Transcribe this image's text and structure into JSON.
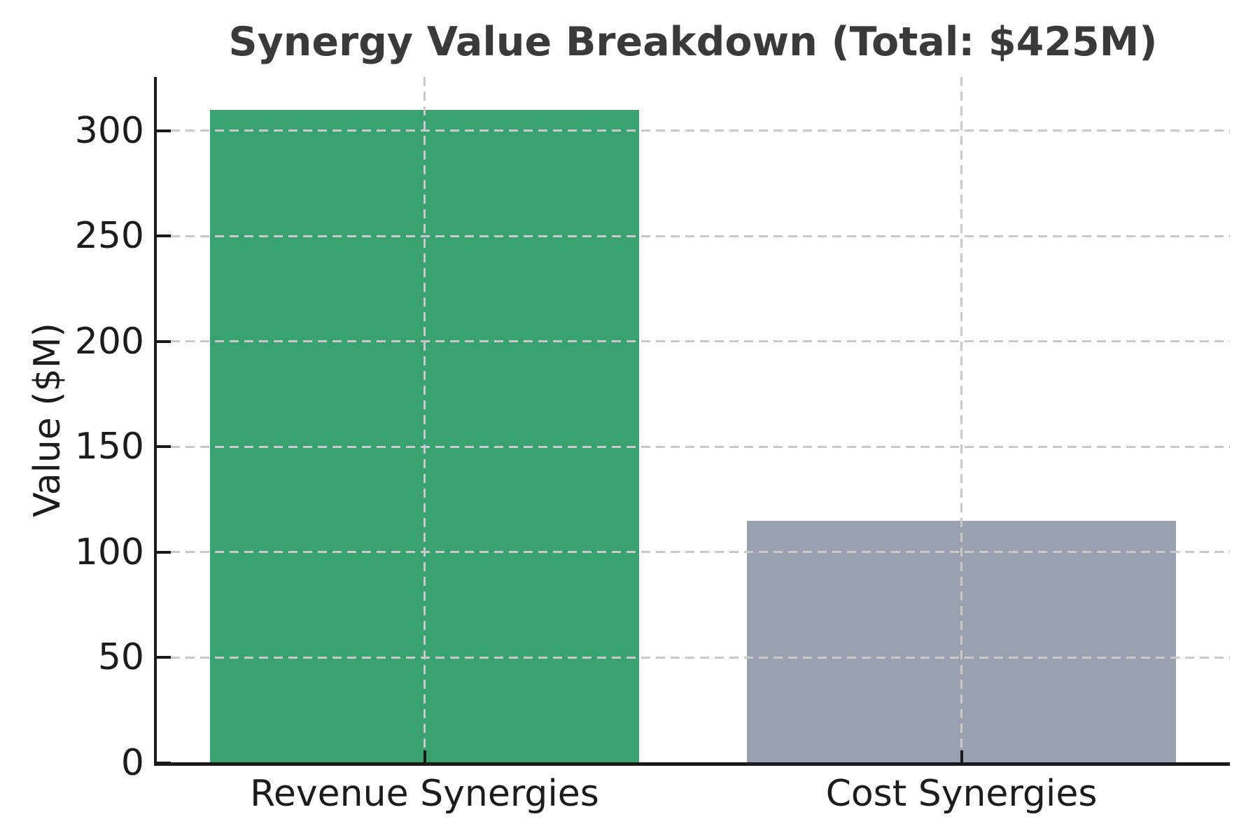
{
  "chart_data": {
    "type": "bar",
    "title": "Synergy Value Breakdown (Total: $425M)",
    "total_label": "$425M",
    "xlabel": "",
    "ylabel": "Value ($M)",
    "categories": [
      "Revenue Synergies",
      "Cost Synergies"
    ],
    "values": [
      310,
      115
    ],
    "bar_colors": [
      "#3aa170",
      "#9aa1ae"
    ],
    "yticks": [
      0,
      50,
      100,
      150,
      200,
      250,
      300
    ],
    "ylim": [
      0,
      325.5
    ],
    "bar_width_fraction": 0.8,
    "grid": {
      "style": "dashed",
      "axes": "both",
      "above_bars": true
    },
    "legend_position": "none"
  },
  "style_colors": {
    "background": "#ffffff",
    "bar_green": "#3aa170",
    "bar_gray": "#9aa1ae",
    "gridline": "#c9c9c9",
    "axis": "#1a1a1a",
    "title_text": "#3a3a3a",
    "tick_text": "#1c1c1c"
  }
}
